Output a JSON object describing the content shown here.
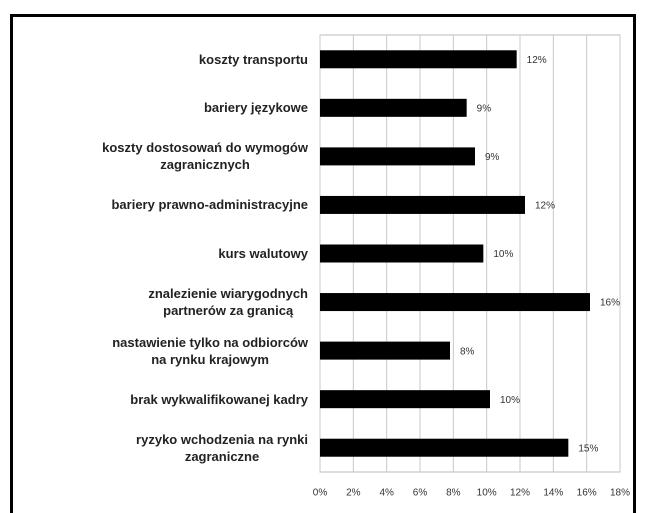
{
  "chart_data": {
    "type": "barh",
    "categories": [
      "koszty transportu",
      "bariery językowe",
      "koszty dostosowań do wymogów\nzagranicznych",
      "bariery prawno-administracyjne",
      "kurs walutowy",
      "znalezienie wiarygodnych\npartnerów za granicą",
      "nastawienie tylko na odbiorców\nna rynku  krajowym",
      "brak wykwalifikowanej kadry",
      "ryzyko wchodzenia na rynki\nzagraniczne"
    ],
    "values": [
      11.8,
      8.8,
      9.3,
      12.3,
      9.8,
      16.2,
      7.8,
      10.2,
      14.9
    ],
    "value_labels": [
      "12%",
      "9%",
      "9%",
      "12%",
      "10%",
      "16%",
      "8%",
      "10%",
      "15%"
    ],
    "color": "#000000",
    "xlim": [
      0,
      18
    ],
    "xticks": [
      {
        "value": 0,
        "label": "0%"
      },
      {
        "value": 2,
        "label": "2%"
      },
      {
        "value": 4,
        "label": "4%"
      },
      {
        "value": 6,
        "label": "6%"
      },
      {
        "value": 8,
        "label": "8%"
      },
      {
        "value": 10,
        "label": "10%"
      },
      {
        "value": 12,
        "label": "12%"
      },
      {
        "value": 14,
        "label": "14%"
      },
      {
        "value": 16,
        "label": "16%"
      },
      {
        "value": 18,
        "label": "18%"
      }
    ],
    "grid": true
  }
}
